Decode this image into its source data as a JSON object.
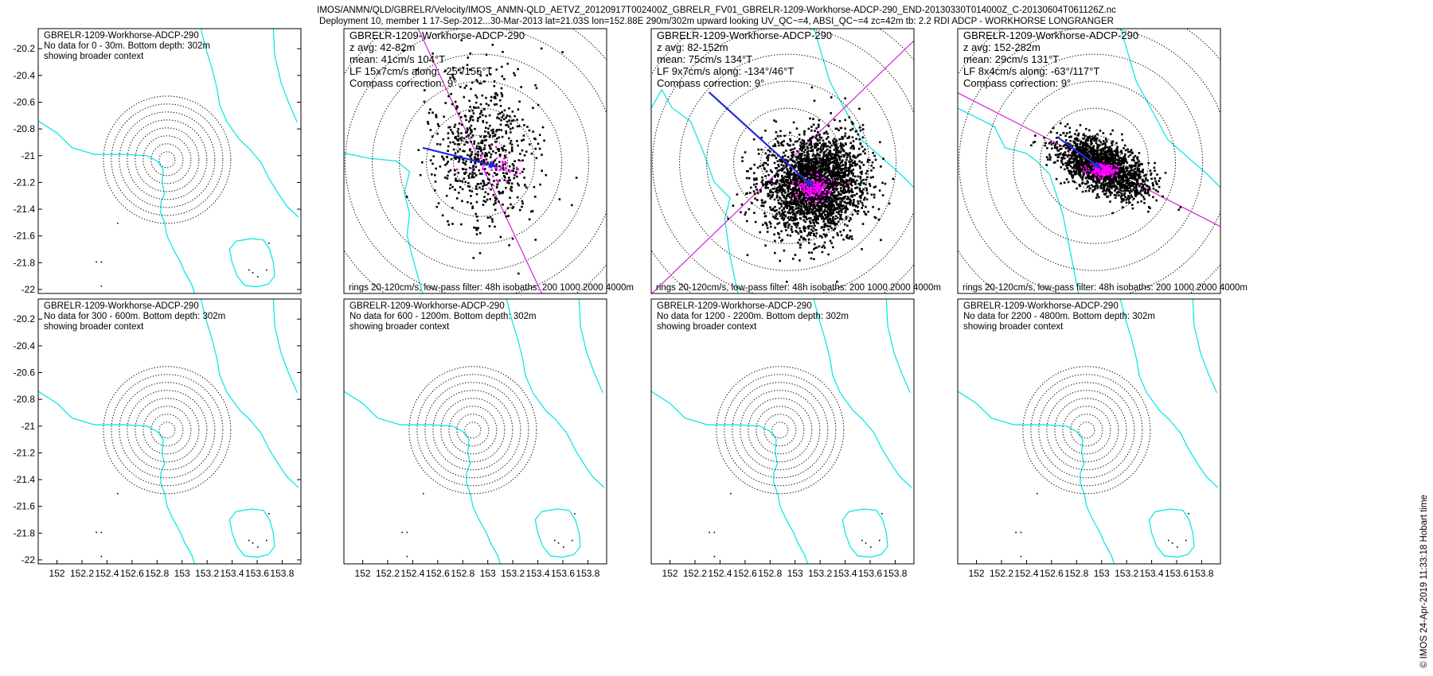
{
  "figure": {
    "title_line1": "IMOS/ANMN/QLD/GBRELR/Velocity/IMOS_ANMN-QLD_AETVZ_20120917T002400Z_GBRELR_FV01_GBRELR-1209-Workhorse-ADCP-290_END-20130330T014000Z_C-20130604T061126Z.nc",
    "title_line2": "Deployment 10, member 1 17-Sep-2012...30-Mar-2013 lat=21.03S lon=152.88E 290m/302m upward looking UV_QC~=4, ABSI_QC~=4 zc=42m tb: 2.2 RDI ADCP - WORKHORSE LONGRANGER",
    "credit": "© IMOS 24-Apr-2019 11:33:18 Hobart time"
  },
  "colors": {
    "coast": "#00e5e5",
    "scatter": "#000000",
    "lowpass": "#ff00ff",
    "arrow": "#1f2dd6",
    "ellipse_axis": "#d020d0"
  },
  "chart_data": [
    {
      "type": "scatter",
      "mode": "context",
      "lines": [
        "GBRELR-1209-Workhorse-ADCP-290",
        "No data for 0 - 30m. Bottom depth: 302m",
        "showing broader context"
      ],
      "yticks": [
        "-20.2",
        "-20.4",
        "-20.6",
        "-20.8",
        "-21",
        "-21.2",
        "-21.4",
        "-21.6",
        "-21.8",
        "-22"
      ],
      "xticks": [],
      "footer": "",
      "xlim": [
        151.85,
        153.95
      ],
      "ylim": [
        -22.03,
        -20.05
      ],
      "rings": 8
    },
    {
      "type": "scatter",
      "mode": "data",
      "lines": [
        "GBRELR-1209-Workhorse-ADCP-290",
        "z avg: 42-82m",
        "mean: 41cm/s 104°T",
        "LF 15x7cm/s along: -25°/155°T",
        "Compass correction: 9°"
      ],
      "yticks": [],
      "xticks": [],
      "footer": "rings 20-120cm/s, low-pass filter: 48h isobaths: 200 1000 2000 4000m",
      "xlim": [
        151.85,
        153.95
      ],
      "ylim": [
        -22.03,
        -20.05
      ],
      "rings": 6,
      "stats": {
        "mean_speed_cm_s": 41,
        "mean_dir_degT": 104,
        "lf_major_cm_s": 15,
        "lf_minor_cm_s": 7,
        "along_deg": -25,
        "along_degT": 155,
        "compass_correction_deg": 9
      }
    },
    {
      "type": "scatter",
      "mode": "data",
      "lines": [
        "GBRELR-1209-Workhorse-ADCP-290",
        "z avg: 82-152m",
        "mean: 75cm/s 134°T",
        "LF 9x7cm/s along: -134°/46°T",
        "Compass correction: 9°"
      ],
      "yticks": [],
      "xticks": [],
      "footer": "rings 20-120cm/s, low-pass filter: 48h isobaths: 200 1000 2000 4000m",
      "xlim": [
        151.85,
        153.95
      ],
      "ylim": [
        -22.03,
        -20.05
      ],
      "rings": 6,
      "stats": {
        "mean_speed_cm_s": 75,
        "mean_dir_degT": 134,
        "lf_major_cm_s": 9,
        "lf_minor_cm_s": 7,
        "along_deg": -134,
        "along_degT": 46,
        "compass_correction_deg": 9
      }
    },
    {
      "type": "scatter",
      "mode": "data",
      "lines": [
        "GBRELR-1209-Workhorse-ADCP-290",
        "z avg: 152-282m",
        "mean: 29cm/s 131°T",
        "LF 8x4cm/s along: -63°/117°T",
        "Compass correction: 9°"
      ],
      "yticks": [],
      "xticks": [],
      "footer": "rings 20-120cm/s, low-pass filter: 48h isobaths: 200 1000 2000 4000m",
      "xlim": [
        151.85,
        153.95
      ],
      "ylim": [
        -22.03,
        -20.05
      ],
      "rings": 6,
      "stats": {
        "mean_speed_cm_s": 29,
        "mean_dir_degT": 131,
        "lf_major_cm_s": 8,
        "lf_minor_cm_s": 4,
        "along_deg": -63,
        "along_degT": 117,
        "compass_correction_deg": 9
      }
    },
    {
      "type": "scatter",
      "mode": "context",
      "lines": [
        "GBRELR-1209-Workhorse-ADCP-290",
        "No data for 300 - 600m. Bottom depth: 302m",
        "showing broader context"
      ],
      "yticks": [
        "-20.2",
        "-20.4",
        "-20.6",
        "-20.8",
        "-21",
        "-21.2",
        "-21.4",
        "-21.6",
        "-21.8",
        "-22"
      ],
      "xticks": [
        "152",
        "152.2",
        "152.4",
        "152.6",
        "152.8",
        "153",
        "153.2",
        "153.4",
        "153.6",
        "153.8"
      ],
      "footer": "",
      "xlim": [
        151.85,
        153.95
      ],
      "ylim": [
        -22.03,
        -20.05
      ],
      "rings": 8
    },
    {
      "type": "scatter",
      "mode": "context",
      "lines": [
        "GBRELR-1209-Workhorse-ADCP-290",
        "No data for 600 - 1200m. Bottom depth: 302m",
        "showing broader context"
      ],
      "yticks": [],
      "xticks": [
        "152",
        "152.2",
        "152.4",
        "152.6",
        "152.8",
        "153",
        "153.2",
        "153.4",
        "153.6",
        "153.8"
      ],
      "footer": "",
      "xlim": [
        151.85,
        153.95
      ],
      "ylim": [
        -22.03,
        -20.05
      ],
      "rings": 8
    },
    {
      "type": "scatter",
      "mode": "context",
      "lines": [
        "GBRELR-1209-Workhorse-ADCP-290",
        "No data for 1200 - 2200m. Bottom depth: 302m",
        "showing broader context"
      ],
      "yticks": [],
      "xticks": [
        "152",
        "152.2",
        "152.4",
        "152.6",
        "152.8",
        "153",
        "153.2",
        "153.4",
        "153.6",
        "153.8"
      ],
      "footer": "",
      "xlim": [
        151.85,
        153.95
      ],
      "ylim": [
        -22.03,
        -20.05
      ],
      "rings": 8
    },
    {
      "type": "scatter",
      "mode": "context",
      "lines": [
        "GBRELR-1209-Workhorse-ADCP-290",
        "No data for 2200 - 4800m. Bottom depth: 302m",
        "showing broader context"
      ],
      "yticks": [],
      "xticks": [
        "152",
        "152.2",
        "152.4",
        "152.6",
        "152.8",
        "153",
        "153.2",
        "153.4",
        "153.6",
        "153.8"
      ],
      "footer": "",
      "xlim": [
        151.85,
        153.95
      ],
      "ylim": [
        -22.03,
        -20.05
      ],
      "rings": 8
    }
  ]
}
